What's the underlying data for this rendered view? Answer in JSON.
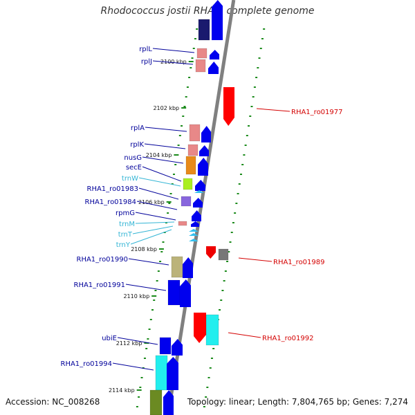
{
  "title": "Rhodococcus jostii RHA1, complete genome",
  "accession_text": "Accession: NC_008268",
  "topology_text": "Topology: linear; Length: 7,804,765 bp; Genes: 7,274",
  "colors": {
    "backbone": "#808080",
    "tick": "#1a8a1a",
    "label_blue": "#00009a",
    "label_cyan": "#33b5d5",
    "label_red": "#d40000",
    "arrow_blue": "#0000ee",
    "arrow_cyan": "#33c0ee"
  },
  "kbp_labels": [
    {
      "kbp": 2100,
      "text": "2100 kbp"
    },
    {
      "kbp": 2102,
      "text": "2102 kbp"
    },
    {
      "kbp": 2104,
      "text": "2104 kbp"
    },
    {
      "kbp": 2106,
      "text": "2106 kbp"
    },
    {
      "kbp": 2108,
      "text": "2108 kbp"
    },
    {
      "kbp": 2110,
      "text": "2110 kbp"
    },
    {
      "kbp": 2112,
      "text": "2112 kbp"
    },
    {
      "kbp": 2114,
      "text": "2114 kbp"
    }
  ],
  "left_labels": [
    {
      "text": "rplL",
      "color": "blue"
    },
    {
      "text": "rplJ",
      "color": "blue"
    },
    {
      "text": "rplA",
      "color": "blue"
    },
    {
      "text": "rplK",
      "color": "blue"
    },
    {
      "text": "nusG",
      "color": "blue"
    },
    {
      "text": "secE",
      "color": "blue"
    },
    {
      "text": "trnW",
      "color": "cyan"
    },
    {
      "text": "RHA1_ro01983",
      "color": "blue"
    },
    {
      "text": "RHA1_ro01984",
      "color": "blue"
    },
    {
      "text": "rpmG",
      "color": "blue"
    },
    {
      "text": "trnM",
      "color": "cyan"
    },
    {
      "text": "trnT",
      "color": "cyan"
    },
    {
      "text": "trnY",
      "color": "cyan"
    },
    {
      "text": "RHA1_ro01990",
      "color": "blue"
    },
    {
      "text": "RHA1_ro01991",
      "color": "blue"
    },
    {
      "text": "ubiE",
      "color": "blue"
    },
    {
      "text": "RHA1_ro01994",
      "color": "blue"
    }
  ],
  "right_labels": [
    {
      "text": "RHA1_ro01977",
      "color": "red"
    },
    {
      "text": "RHA1_ro01989",
      "color": "red"
    },
    {
      "text": "RHA1_ro01992",
      "color": "red"
    }
  ],
  "genes_left": [
    {
      "color": "#1a1a6e"
    },
    {
      "color": "#e88888"
    },
    {
      "color": "#e88888"
    },
    {
      "color": "#e88888"
    },
    {
      "color": "#e88888"
    },
    {
      "color": "#e88a1a"
    },
    {
      "color": "#aaee22"
    },
    {
      "color": "#8866dd"
    },
    {
      "color": "#e88888"
    },
    {
      "color": "#bbb37a"
    },
    {
      "color": "#0000ee"
    },
    {
      "color": "#0000ee"
    },
    {
      "color": "#22eeee"
    },
    {
      "color": "#6b8a22"
    }
  ],
  "genes_right": [
    {
      "color": "#ff0000"
    },
    {
      "color": "#ee0000"
    },
    {
      "color": "#777777"
    },
    {
      "color": "#ff0000"
    },
    {
      "color": "#22eeee"
    }
  ]
}
